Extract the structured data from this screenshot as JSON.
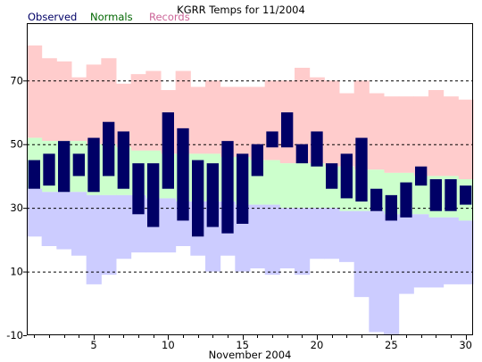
{
  "chart_data": {
    "type": "bar",
    "title": "KGRR Temps for 11/2004",
    "xlabel": "November 2004",
    "ylabel": "",
    "ylim": [
      -10,
      88
    ],
    "xlim": [
      0.5,
      30.5
    ],
    "y_ticks": [
      -10,
      10,
      30,
      50,
      70
    ],
    "x_ticks": [
      5,
      10,
      15,
      20,
      25,
      30
    ],
    "grid": "dashed horizontal at y ticks",
    "legend": [
      {
        "name": "Observed",
        "color": "#000066"
      },
      {
        "name": "Normals",
        "color": "#006600"
      },
      {
        "name": "Records",
        "color": "#cc6699"
      }
    ],
    "colors": {
      "records": "#ffcccc",
      "normals": "#ccffcc",
      "record_low_band": "#ccccff",
      "observed": "#000066"
    },
    "days": [
      1,
      2,
      3,
      4,
      5,
      6,
      7,
      8,
      9,
      10,
      11,
      12,
      13,
      14,
      15,
      16,
      17,
      18,
      19,
      20,
      21,
      22,
      23,
      24,
      25,
      26,
      27,
      28,
      29,
      30
    ],
    "records": {
      "high": [
        81,
        77,
        76,
        71,
        75,
        77,
        69,
        72,
        73,
        67,
        73,
        68,
        70,
        68,
        68,
        68,
        70,
        70,
        74,
        71,
        70,
        66,
        70,
        66,
        65,
        65,
        65,
        67,
        65,
        64
      ],
      "low": [
        21,
        18,
        17,
        15,
        6,
        9,
        14,
        16,
        16,
        16,
        18,
        15,
        10,
        15,
        10,
        11,
        9,
        11,
        9,
        14,
        14,
        13,
        2,
        -9,
        -10,
        3,
        5,
        5,
        6,
        6
      ]
    },
    "normals": {
      "high": [
        52,
        51,
        51,
        51,
        50,
        50,
        49,
        48,
        48,
        47,
        47,
        47,
        47,
        46,
        46,
        45,
        45,
        44,
        44,
        44,
        43,
        43,
        42,
        42,
        41,
        41,
        40,
        40,
        40,
        39
      ],
      "low": [
        36,
        35,
        35,
        35,
        34,
        34,
        34,
        34,
        33,
        33,
        32,
        32,
        32,
        32,
        31,
        31,
        31,
        30,
        30,
        30,
        30,
        29,
        29,
        29,
        28,
        28,
        28,
        27,
        27,
        26
      ]
    },
    "observed": {
      "high": [
        45,
        47,
        51,
        47,
        52,
        57,
        54,
        44,
        44,
        60,
        55,
        45,
        44,
        51,
        47,
        50,
        54,
        60,
        50,
        54,
        44,
        47,
        52,
        36,
        34,
        38,
        43,
        39,
        39,
        37
      ],
      "low": [
        36,
        37,
        35,
        40,
        35,
        40,
        36,
        28,
        24,
        36,
        26,
        21,
        24,
        22,
        25,
        40,
        49,
        49,
        44,
        43,
        36,
        33,
        32,
        29,
        26,
        27,
        37,
        29,
        29,
        31
      ]
    }
  }
}
